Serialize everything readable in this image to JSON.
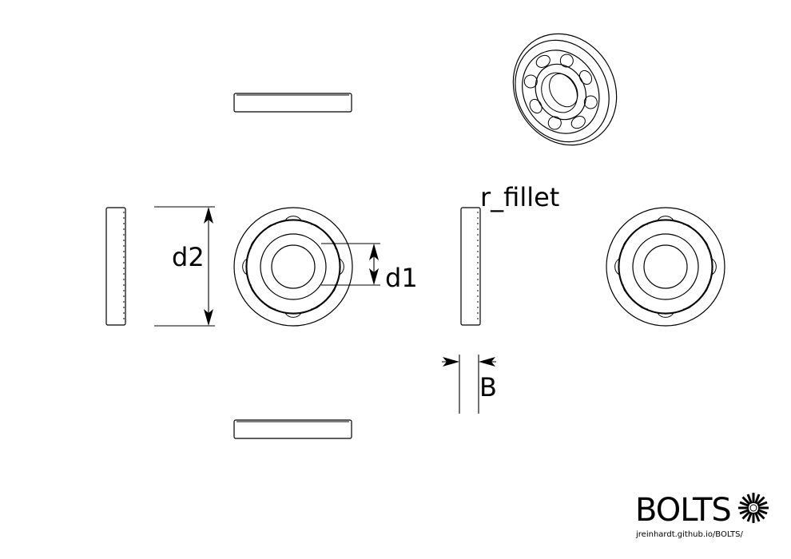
{
  "dimensions": {
    "d2": "d2",
    "d1": "d1",
    "r_fillet": "r_fillet",
    "B": "B"
  },
  "logo": {
    "name": "BOLTS",
    "url": "jreinhardt.github.io/BOLTS/"
  }
}
